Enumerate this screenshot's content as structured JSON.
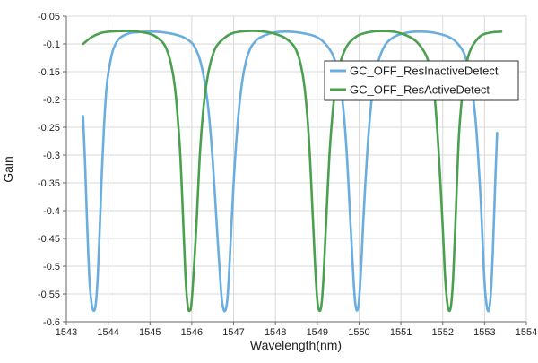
{
  "chart_data": {
    "type": "line",
    "title": "",
    "xlabel": "Wavelength(nm)",
    "ylabel": "Gain",
    "xlim": [
      1543,
      1554
    ],
    "ylim": [
      -0.6,
      -0.05
    ],
    "x_ticks": [
      1543,
      1544,
      1545,
      1546,
      1547,
      1548,
      1549,
      1550,
      1551,
      1552,
      1553,
      1554
    ],
    "y_ticks": [
      -0.05,
      -0.1,
      -0.15,
      -0.2,
      -0.25,
      -0.3,
      -0.35,
      -0.4,
      -0.45,
      -0.5,
      -0.55,
      -0.6
    ],
    "x_tick_labels": [
      "1543",
      "1544",
      "1545",
      "1546",
      "1547",
      "1548",
      "1549",
      "1550",
      "1551",
      "1552",
      "1553",
      "1554"
    ],
    "y_tick_labels": [
      "-0.05",
      "-0.1",
      "-0.15",
      "-0.2",
      "-0.25",
      "-0.3",
      "-0.35",
      "-0.4",
      "-0.45",
      "-0.5",
      "-0.55",
      "-0.6"
    ],
    "grid": true,
    "legend_position": "top-right",
    "series": [
      {
        "name": "GC_OFF_ResInactiveDetect",
        "color": "#6aaee0",
        "x": [
          1543.4,
          1543.45,
          1543.5,
          1543.55,
          1543.6,
          1543.65,
          1543.7,
          1543.75,
          1543.8,
          1543.85,
          1543.9,
          1543.95,
          1544.0,
          1544.1,
          1544.2,
          1544.3,
          1544.5,
          1544.7,
          1545.0,
          1545.3,
          1545.6,
          1545.8,
          1546.0,
          1546.1,
          1546.2,
          1546.3,
          1546.4,
          1546.5,
          1546.6,
          1546.7,
          1546.75,
          1546.8,
          1546.85,
          1546.9,
          1547.0,
          1547.1,
          1547.2,
          1547.3,
          1547.4,
          1547.5,
          1547.6,
          1547.8,
          1548.0,
          1548.3,
          1548.6,
          1548.9,
          1549.1,
          1549.3,
          1549.4,
          1549.5,
          1549.6,
          1549.7,
          1549.8,
          1549.85,
          1549.9,
          1549.95,
          1550.0,
          1550.05,
          1550.1,
          1550.2,
          1550.3,
          1550.4,
          1550.5,
          1550.6,
          1550.7,
          1550.9,
          1551.2,
          1551.5,
          1551.8,
          1552.1,
          1552.3,
          1552.5,
          1552.6,
          1552.7,
          1552.8,
          1552.9,
          1552.95,
          1553.0,
          1553.05,
          1553.1,
          1553.15,
          1553.2,
          1553.25,
          1553.3
        ],
        "values": [
          -0.23,
          -0.32,
          -0.43,
          -0.52,
          -0.565,
          -0.58,
          -0.57,
          -0.52,
          -0.43,
          -0.33,
          -0.25,
          -0.19,
          -0.155,
          -0.115,
          -0.097,
          -0.088,
          -0.081,
          -0.079,
          -0.078,
          -0.079,
          -0.083,
          -0.088,
          -0.098,
          -0.11,
          -0.13,
          -0.165,
          -0.22,
          -0.31,
          -0.43,
          -0.545,
          -0.575,
          -0.58,
          -0.56,
          -0.5,
          -0.35,
          -0.24,
          -0.17,
          -0.13,
          -0.108,
          -0.097,
          -0.09,
          -0.083,
          -0.079,
          -0.078,
          -0.08,
          -0.085,
          -0.093,
          -0.11,
          -0.125,
          -0.155,
          -0.2,
          -0.29,
          -0.43,
          -0.5,
          -0.56,
          -0.58,
          -0.56,
          -0.5,
          -0.42,
          -0.29,
          -0.2,
          -0.15,
          -0.122,
          -0.105,
          -0.095,
          -0.085,
          -0.079,
          -0.078,
          -0.08,
          -0.086,
          -0.095,
          -0.115,
          -0.14,
          -0.18,
          -0.25,
          -0.37,
          -0.45,
          -0.53,
          -0.57,
          -0.58,
          -0.55,
          -0.47,
          -0.36,
          -0.26
        ]
      },
      {
        "name": "GC_OFF_ResActiveDetect",
        "color": "#4aa04e",
        "x": [
          1543.4,
          1543.6,
          1543.8,
          1544.0,
          1544.3,
          1544.6,
          1544.9,
          1545.1,
          1545.3,
          1545.4,
          1545.5,
          1545.6,
          1545.7,
          1545.75,
          1545.8,
          1545.85,
          1545.9,
          1545.95,
          1546.0,
          1546.1,
          1546.2,
          1546.3,
          1546.4,
          1546.5,
          1546.6,
          1546.8,
          1547.0,
          1547.3,
          1547.6,
          1547.9,
          1548.2,
          1548.4,
          1548.5,
          1548.6,
          1548.7,
          1548.8,
          1548.9,
          1548.95,
          1549.0,
          1549.05,
          1549.1,
          1549.15,
          1549.2,
          1549.3,
          1549.4,
          1549.5,
          1549.6,
          1549.7,
          1549.8,
          1550.0,
          1550.3,
          1550.6,
          1550.9,
          1551.2,
          1551.4,
          1551.6,
          1551.7,
          1551.8,
          1551.9,
          1552.0,
          1552.05,
          1552.1,
          1552.15,
          1552.2,
          1552.25,
          1552.3,
          1552.35,
          1552.4,
          1552.5,
          1552.6,
          1552.7,
          1552.8,
          1552.9,
          1553.0,
          1553.2,
          1553.4
        ],
        "values": [
          -0.1,
          -0.088,
          -0.081,
          -0.078,
          -0.077,
          -0.077,
          -0.08,
          -0.085,
          -0.097,
          -0.11,
          -0.135,
          -0.18,
          -0.27,
          -0.34,
          -0.43,
          -0.52,
          -0.57,
          -0.58,
          -0.56,
          -0.44,
          -0.29,
          -0.2,
          -0.15,
          -0.12,
          -0.103,
          -0.088,
          -0.08,
          -0.077,
          -0.077,
          -0.08,
          -0.088,
          -0.1,
          -0.112,
          -0.135,
          -0.18,
          -0.27,
          -0.42,
          -0.5,
          -0.56,
          -0.58,
          -0.57,
          -0.52,
          -0.44,
          -0.29,
          -0.2,
          -0.15,
          -0.122,
          -0.105,
          -0.095,
          -0.084,
          -0.078,
          -0.077,
          -0.079,
          -0.087,
          -0.098,
          -0.12,
          -0.145,
          -0.19,
          -0.29,
          -0.43,
          -0.51,
          -0.56,
          -0.58,
          -0.57,
          -0.52,
          -0.43,
          -0.33,
          -0.25,
          -0.17,
          -0.125,
          -0.105,
          -0.094,
          -0.086,
          -0.082,
          -0.079,
          -0.078
        ]
      }
    ]
  }
}
